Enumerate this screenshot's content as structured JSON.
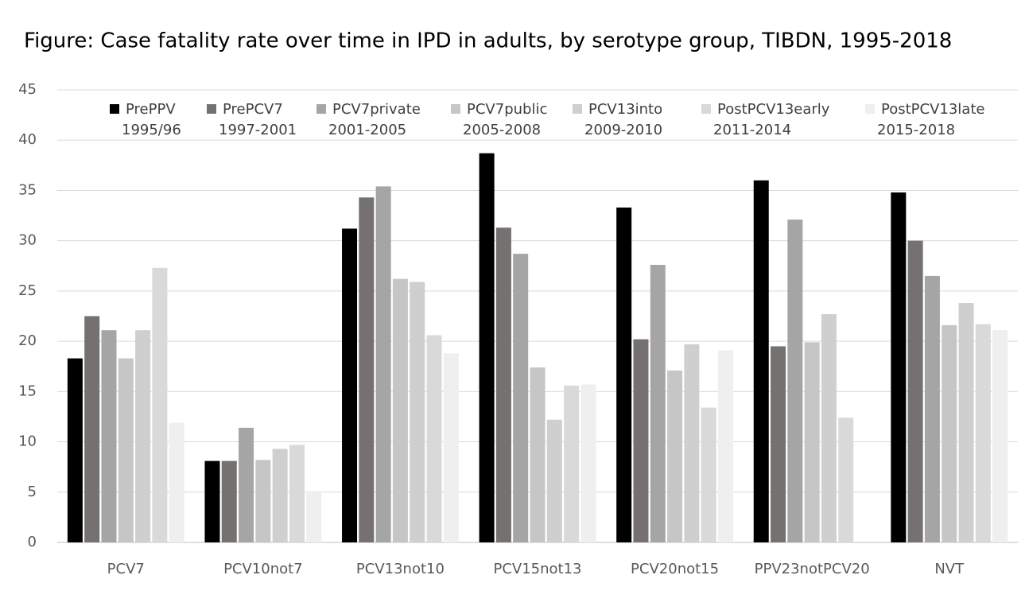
{
  "chart_data": {
    "type": "bar",
    "title": "Figure:  Case fatality rate over time in IPD in adults, by serotype group, TIBDN, 1995-2018",
    "categories": [
      "PCV7",
      "PCV10not7",
      "PCV13not10",
      "PCV15not13",
      "PCV20not15",
      "PPV23notPCV20",
      "NVT"
    ],
    "series": [
      {
        "name": "PrePPV",
        "period": "1995/96",
        "color": "#000000",
        "values": [
          18.3,
          8.1,
          31.2,
          38.7,
          33.3,
          36.0,
          34.8
        ]
      },
      {
        "name": "PrePCV7",
        "period": "1997-2001",
        "color": "#767171",
        "values": [
          22.5,
          8.1,
          34.3,
          31.3,
          20.2,
          19.5,
          30.0
        ]
      },
      {
        "name": "PCV7private",
        "period": "2001-2005",
        "color": "#a5a5a5",
        "values": [
          21.1,
          11.4,
          35.4,
          28.7,
          27.6,
          32.1,
          26.5
        ]
      },
      {
        "name": "PCV7public",
        "period": "2005-2008",
        "color": "#c6c6c6",
        "values": [
          18.3,
          8.2,
          26.2,
          17.4,
          17.1,
          19.9,
          21.6
        ]
      },
      {
        "name": "PCV13into",
        "period": "2009-2010",
        "color": "#cfcfcf",
        "values": [
          21.1,
          9.3,
          25.9,
          12.2,
          19.7,
          22.7,
          23.8
        ]
      },
      {
        "name": "PostPCV13early",
        "period": "2011-2014",
        "color": "#d9d9d9",
        "values": [
          27.3,
          9.7,
          20.6,
          15.6,
          13.4,
          12.4,
          21.7
        ]
      },
      {
        "name": "PostPCV13late",
        "period": "2015-2018",
        "color": "#efefef",
        "values": [
          11.9,
          4.9,
          18.8,
          15.7,
          19.1,
          null,
          21.1
        ]
      }
    ],
    "ylim": [
      0,
      45
    ],
    "yticks": [
      0,
      5,
      10,
      15,
      20,
      25,
      30,
      35,
      40,
      45
    ],
    "grid": true,
    "legend": "top"
  }
}
